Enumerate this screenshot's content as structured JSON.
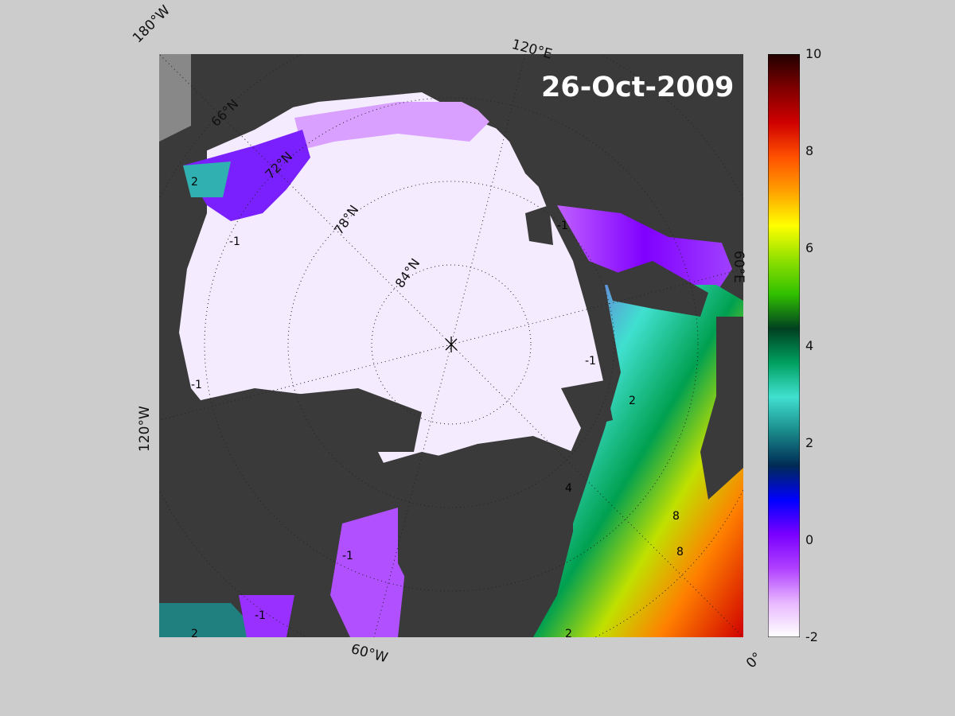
{
  "date": "26-Oct-2009",
  "longitude_labels": {
    "lon_180w": "180°W",
    "lon_120e": "120°E",
    "lon_60e": "60°E",
    "lon_120w": "120°W",
    "lon_60w": "60°W",
    "lon_0": "0°"
  },
  "latitude_labels": [
    "66°N",
    "72°N",
    "78°N",
    "84°N"
  ],
  "contour_labels": [
    "2",
    "-1",
    "-1",
    "-1",
    "2",
    "-1",
    "-1",
    "8",
    "8",
    "4",
    "-1",
    "2",
    "2"
  ],
  "colorbar": {
    "min": -2,
    "max": 10,
    "ticks": [
      "10",
      "8",
      "6",
      "4",
      "2",
      "0",
      "-2"
    ],
    "stops": [
      "#ffffff",
      "#e8b8ff",
      "#b040ff",
      "#7a00ff",
      "#0000ff",
      "#002a55",
      "#1a8a8a",
      "#40e0d0",
      "#00a060",
      "#004020",
      "#30c000",
      "#90e000",
      "#ffff00",
      "#ffa000",
      "#ff5000",
      "#d00000",
      "#800000",
      "#200000"
    ]
  },
  "colors": {
    "land": "#3a3a3a",
    "ice": "#f3e6ff",
    "background": "#cccccc"
  }
}
